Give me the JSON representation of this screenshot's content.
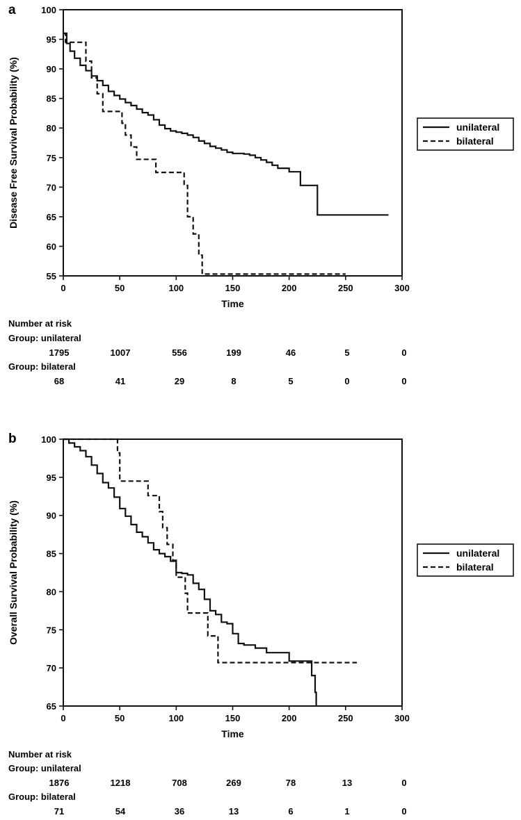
{
  "chart_data": [
    {
      "panel_label": "a",
      "type": "line",
      "subtype": "kaplan-meier step",
      "xlabel": "Time",
      "ylabel": "Disease Free Survival Probability (%)",
      "xlim": [
        0,
        300
      ],
      "ylim": [
        55,
        100
      ],
      "xticks": [
        0,
        50,
        100,
        150,
        200,
        250,
        300
      ],
      "yticks": [
        55,
        60,
        65,
        70,
        75,
        80,
        85,
        90,
        95,
        100
      ],
      "legend_position": "right",
      "series": [
        {
          "name": "unilateral",
          "style": "solid",
          "x": [
            0,
            3,
            6,
            10,
            15,
            20,
            25,
            30,
            35,
            40,
            45,
            50,
            55,
            60,
            65,
            70,
            75,
            80,
            85,
            90,
            95,
            100,
            105,
            110,
            115,
            120,
            125,
            130,
            135,
            140,
            145,
            150,
            155,
            160,
            165,
            170,
            175,
            180,
            185,
            190,
            200,
            210,
            212,
            225,
            240,
            288
          ],
          "y": [
            96,
            94.3,
            93,
            91.8,
            90.6,
            89.7,
            88.8,
            88.0,
            87.2,
            86.2,
            85.5,
            84.9,
            84.3,
            83.8,
            83.2,
            82.6,
            82.2,
            81.4,
            80.5,
            79.9,
            79.5,
            79.3,
            79.1,
            78.8,
            78.4,
            77.8,
            77.4,
            76.9,
            76.6,
            76.3,
            75.9,
            75.7,
            75.7,
            75.6,
            75.4,
            75.0,
            74.6,
            74.2,
            73.7,
            73.2,
            72.6,
            70.3,
            70.3,
            65.3,
            65.3,
            65.3
          ]
        },
        {
          "name": "bilateral",
          "style": "dashed",
          "x": [
            0,
            2,
            5,
            15,
            20,
            25,
            30,
            35,
            45,
            52,
            55,
            60,
            65,
            75,
            82,
            105,
            107,
            110,
            115,
            120,
            123,
            250
          ],
          "y": [
            96,
            94.5,
            94.5,
            94.5,
            91.3,
            88.5,
            85.8,
            82.8,
            82.8,
            80.8,
            78.8,
            76.8,
            74.7,
            74.7,
            72.5,
            72.5,
            70.3,
            65.0,
            62.1,
            58.5,
            55.3,
            55.3
          ]
        }
      ],
      "risk_table": {
        "title": "Number at risk",
        "times": [
          0,
          50,
          100,
          150,
          200,
          250,
          300
        ],
        "groups": [
          {
            "label": "Group: unilateral",
            "counts": [
              "1795",
              "1007",
              "556",
              "199",
              "46",
              "5",
              "0"
            ]
          },
          {
            "label": "Group: bilateral",
            "counts": [
              "68",
              "41",
              "29",
              "8",
              "5",
              "0",
              "0"
            ]
          }
        ]
      }
    },
    {
      "panel_label": "b",
      "type": "line",
      "subtype": "kaplan-meier step",
      "xlabel": "Time",
      "ylabel": "Overall Survival Probability (%)",
      "xlim": [
        0,
        300
      ],
      "ylim": [
        65,
        100
      ],
      "xticks": [
        0,
        50,
        100,
        150,
        200,
        250,
        300
      ],
      "yticks": [
        65,
        70,
        75,
        80,
        85,
        90,
        95,
        100
      ],
      "legend_position": "right",
      "series": [
        {
          "name": "unilateral",
          "style": "solid",
          "x": [
            0,
            5,
            10,
            15,
            20,
            25,
            30,
            35,
            40,
            45,
            50,
            55,
            60,
            65,
            70,
            75,
            80,
            85,
            90,
            95,
            100,
            105,
            110,
            115,
            120,
            125,
            130,
            135,
            140,
            145,
            150,
            155,
            160,
            170,
            180,
            200,
            220,
            223,
            224
          ],
          "y": [
            100,
            99.5,
            99.0,
            98.5,
            97.7,
            96.6,
            95.5,
            94.3,
            93.6,
            92.4,
            90.9,
            89.9,
            88.8,
            87.8,
            87.2,
            86.4,
            85.5,
            85.0,
            84.6,
            84.0,
            82.5,
            82.4,
            82.2,
            81.1,
            80.3,
            79.0,
            77.5,
            77.0,
            76.0,
            75.8,
            74.5,
            73.2,
            73.0,
            72.6,
            72.0,
            70.9,
            69.0,
            66.8,
            65.0
          ]
        },
        {
          "name": "bilateral",
          "style": "dashed",
          "x": [
            0,
            45,
            48,
            50,
            70,
            75,
            80,
            85,
            88,
            92,
            97,
            100,
            108,
            110,
            128,
            130,
            137,
            260
          ],
          "y": [
            100,
            100,
            98.2,
            94.5,
            94.5,
            92.6,
            92.6,
            90.5,
            88.4,
            86.2,
            84.1,
            81.9,
            79.8,
            77.2,
            74.2,
            74.2,
            70.7,
            70.7
          ]
        }
      ],
      "risk_table": {
        "title": "Number at risk",
        "times": [
          0,
          50,
          100,
          150,
          200,
          250,
          300
        ],
        "groups": [
          {
            "label": "Group: unilateral",
            "counts": [
              "1876",
              "1218",
              "708",
              "269",
              "78",
              "13",
              "0"
            ]
          },
          {
            "label": "Group: bilateral",
            "counts": [
              "71",
              "54",
              "36",
              "13",
              "6",
              "1",
              "0"
            ]
          }
        ]
      }
    }
  ]
}
